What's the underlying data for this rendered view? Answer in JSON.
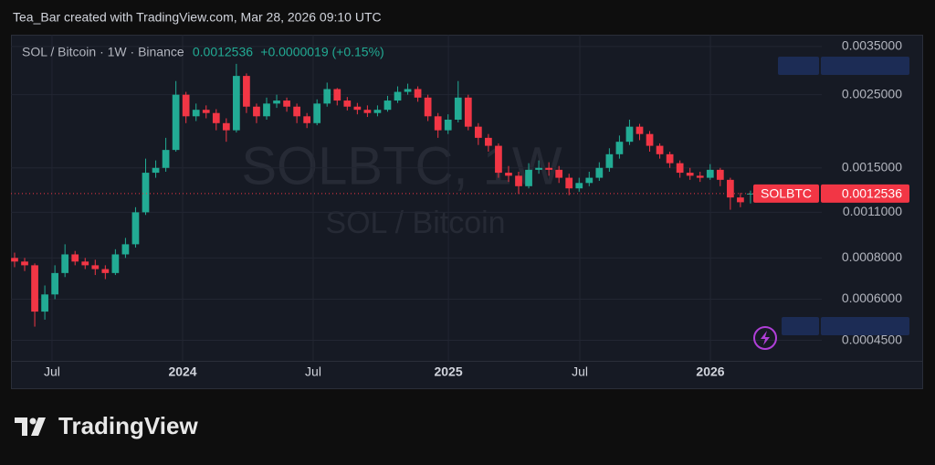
{
  "header": {
    "credit": "Tea_Bar created with TradingView.com, Mar 28, 2026 09:10 UTC"
  },
  "footer": {
    "brand": "TradingView"
  },
  "chart_data": {
    "type": "candlestick",
    "symbol": "SOL / Bitcoin · 1W · Binance",
    "change": "+0.0000019 (+0.15%)",
    "ticker": "SOLBTC",
    "watermark": "SOLBTC, 1W",
    "watermark_subtitle": "SOL / Bitcoin",
    "log_scale": true,
    "grid": true,
    "up_color": "#22ab94",
    "down_color": "#f23645",
    "high": [
      0.00083,
      0.0008,
      0.00077,
      0.00066,
      0.00076,
      0.00088,
      0.00084,
      0.0008,
      0.00079,
      0.00076,
      0.00085,
      0.00092,
      0.00114,
      0.0016,
      0.00158,
      0.00185,
      0.00275,
      0.00255,
      0.00235,
      0.00232,
      0.00226,
      0.00212,
      0.003101,
      0.0029,
      0.00235,
      0.00245,
      0.0025,
      0.00245,
      0.00235,
      0.0022,
      0.00242,
      0.00272,
      0.00262,
      0.00246,
      0.00236,
      0.00232,
      0.00232,
      0.00248,
      0.00265,
      0.0027,
      0.00265,
      0.0025,
      0.0022,
      0.00218,
      0.00275,
      0.0025,
      0.00205,
      0.0019,
      0.00178,
      0.00152,
      0.00146,
      0.00155,
      0.00158,
      0.00156,
      0.00152,
      0.00144,
      0.0014,
      0.00146,
      0.00156,
      0.00172,
      0.00188,
      0.0021,
      0.00204,
      0.00194,
      0.00178,
      0.00168,
      0.00158,
      0.0015,
      0.00146,
      0.00154,
      0.0015,
      0.0014,
      0.00126,
      0.00128
    ],
    "low": [
      0.00075,
      0.00073,
      0.0004952,
      0.00052,
      0.0006,
      0.0007,
      0.00076,
      0.00074,
      0.00071,
      0.00069,
      0.00071,
      0.0008,
      0.00086,
      0.00108,
      0.0014,
      0.00146,
      0.00168,
      0.00205,
      0.00208,
      0.00212,
      0.00195,
      0.0018,
      0.00192,
      0.0022,
      0.00205,
      0.0021,
      0.00228,
      0.00222,
      0.00205,
      0.00198,
      0.00202,
      0.0023,
      0.00232,
      0.00224,
      0.00218,
      0.00214,
      0.00215,
      0.00222,
      0.00236,
      0.0025,
      0.00238,
      0.00208,
      0.00185,
      0.0019,
      0.00206,
      0.00195,
      0.00176,
      0.00168,
      0.0014,
      0.00136,
      0.00125,
      0.0013,
      0.00144,
      0.00142,
      0.00135,
      0.00124,
      0.00127,
      0.00132,
      0.00137,
      0.00146,
      0.0016,
      0.00176,
      0.00182,
      0.00168,
      0.0016,
      0.0015,
      0.0014,
      0.00138,
      0.00136,
      0.00138,
      0.00132,
      0.00112,
      0.00114,
      0.00117
    ],
    "xlim": [
      -0.36,
      80.07
    ],
    "xticks": [
      {
        "value": 3.71,
        "label": "Jul"
      },
      {
        "value": 16.67,
        "label": "2024"
      },
      {
        "value": 29.62,
        "label": "Jul"
      },
      {
        "value": 43.03,
        "label": "2025"
      },
      {
        "value": 56.07,
        "label": "Jul"
      },
      {
        "value": 69.02,
        "label": "2026"
      }
    ],
    "ylim": [
      0.00039,
      0.0038
    ],
    "yticks": [
      {
        "value": 0.00045,
        "label": "0.0004500"
      },
      {
        "value": 0.0006,
        "label": "0.0006000"
      },
      {
        "value": 0.0008,
        "label": "0.0008000"
      },
      {
        "value": 0.0011,
        "label": "0.0011000"
      },
      {
        "value": 0.0015,
        "label": "0.0015000"
      },
      {
        "value": 0.0025,
        "label": "0.0025000"
      },
      {
        "value": 0.0035,
        "label": "0.0035000"
      }
    ],
    "open": [
      0.0008,
      0.00078,
      0.00076,
      0.00055,
      0.00062,
      0.00072,
      0.00082,
      0.00078,
      0.00076,
      0.00074,
      0.00072,
      0.00082,
      0.00088,
      0.0011,
      0.00145,
      0.0015,
      0.0017,
      0.0025,
      0.00215,
      0.00225,
      0.0022,
      0.00205,
      0.00195,
      0.00285,
      0.0023,
      0.00215,
      0.00235,
      0.0024,
      0.0023,
      0.00215,
      0.00205,
      0.00235,
      0.0026,
      0.0024,
      0.0023,
      0.00225,
      0.0022,
      0.00225,
      0.0024,
      0.00255,
      0.0026,
      0.00245,
      0.00215,
      0.00195,
      0.0021,
      0.00245,
      0.002,
      0.00185,
      0.00175,
      0.00145,
      0.00142,
      0.00132,
      0.00148,
      0.0015,
      0.00148,
      0.0014,
      0.0013,
      0.00135,
      0.0014,
      0.0015,
      0.00165,
      0.0018,
      0.002,
      0.0019,
      0.00175,
      0.00165,
      0.00155,
      0.00145,
      0.00142,
      0.0014,
      0.00148,
      0.00138,
      0.00122,
      0.0012517
    ],
    "close": [
      0.00078,
      0.00076,
      0.00055,
      0.00062,
      0.00072,
      0.00082,
      0.00078,
      0.00076,
      0.00074,
      0.00072,
      0.00082,
      0.00088,
      0.0011,
      0.00145,
      0.0015,
      0.0017,
      0.0025,
      0.00215,
      0.00225,
      0.0022,
      0.00205,
      0.00195,
      0.00285,
      0.0023,
      0.00215,
      0.00235,
      0.0024,
      0.0023,
      0.00215,
      0.00205,
      0.00235,
      0.0026,
      0.0024,
      0.0023,
      0.00225,
      0.0022,
      0.00225,
      0.0024,
      0.00255,
      0.0026,
      0.00245,
      0.00215,
      0.00195,
      0.0021,
      0.00245,
      0.002,
      0.00185,
      0.00175,
      0.00145,
      0.00142,
      0.00132,
      0.00148,
      0.0015,
      0.00148,
      0.0014,
      0.0013,
      0.00135,
      0.0014,
      0.0015,
      0.00165,
      0.0018,
      0.002,
      0.0019,
      0.00175,
      0.00165,
      0.00155,
      0.00145,
      0.00142,
      0.0014,
      0.00148,
      0.00138,
      0.00122,
      0.00118,
      0.0012536
    ]
  }
}
